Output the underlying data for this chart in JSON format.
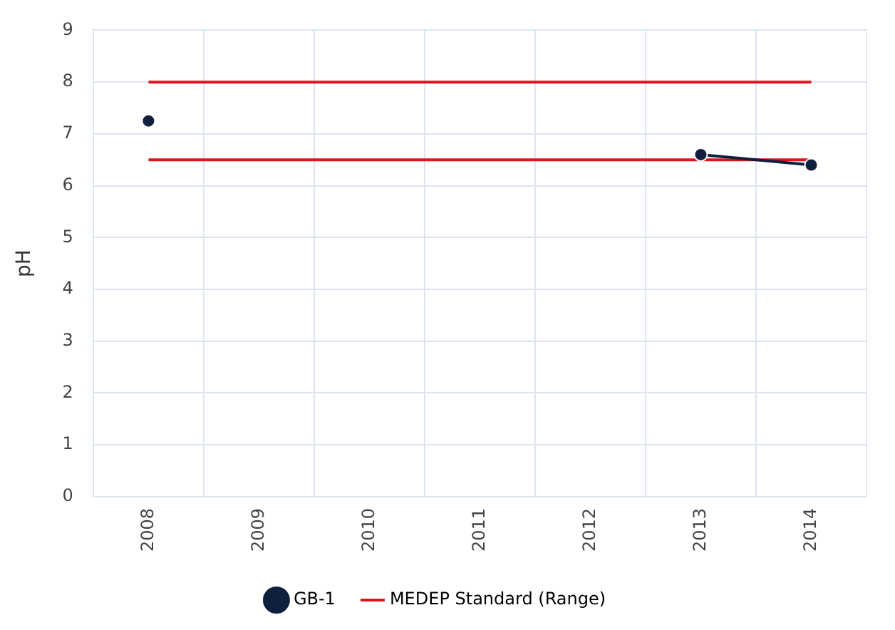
{
  "chart_data": {
    "type": "line",
    "ylabel": "pH",
    "categories": [
      "2008",
      "2009",
      "2010",
      "2011",
      "2012",
      "2013",
      "2014"
    ],
    "series": [
      {
        "name": "GB-1",
        "color": "#0f1f3d",
        "marker": "circle",
        "values": [
          7.25,
          null,
          null,
          null,
          null,
          6.6,
          6.4
        ]
      },
      {
        "name": "MEDEP Standard (Range)",
        "color": "#e0141e",
        "marker": "none",
        "values": [
          8,
          8,
          8,
          8,
          8,
          8,
          8
        ]
      },
      {
        "color": "#e0141e",
        "marker": "none",
        "values": [
          6.5,
          6.5,
          6.5,
          6.5,
          6.5,
          6.5,
          6.5
        ]
      }
    ],
    "ylim": [
      0,
      9
    ],
    "yticks": [
      0,
      1,
      2,
      3,
      4,
      5,
      6,
      7,
      8,
      9
    ],
    "grid": true,
    "legend": "bottom"
  }
}
